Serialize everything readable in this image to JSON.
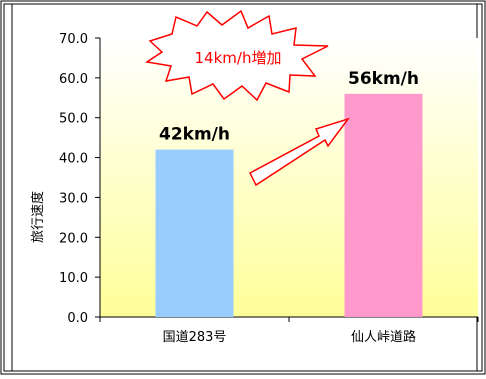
{
  "chart_data": {
    "type": "bar",
    "ylabel": "旅行速度",
    "ylim": [
      0,
      70
    ],
    "yticks": [
      "0.0",
      "10.0",
      "20.0",
      "30.0",
      "40.0",
      "50.0",
      "60.0",
      "70.0"
    ],
    "categories": [
      "国道283号",
      "仙人峠道路"
    ],
    "values": [
      42,
      56
    ],
    "value_labels": [
      "42km/h",
      "56km/h"
    ],
    "colors": [
      "#99ccff",
      "#ff99cc"
    ],
    "annotation": "14km/h増加",
    "annotation_color": "#ff0000",
    "arrow_color": "#ff0000",
    "plot_gradient": [
      "#ffffff",
      "#ffff99"
    ],
    "grid": false,
    "legend": "none"
  }
}
